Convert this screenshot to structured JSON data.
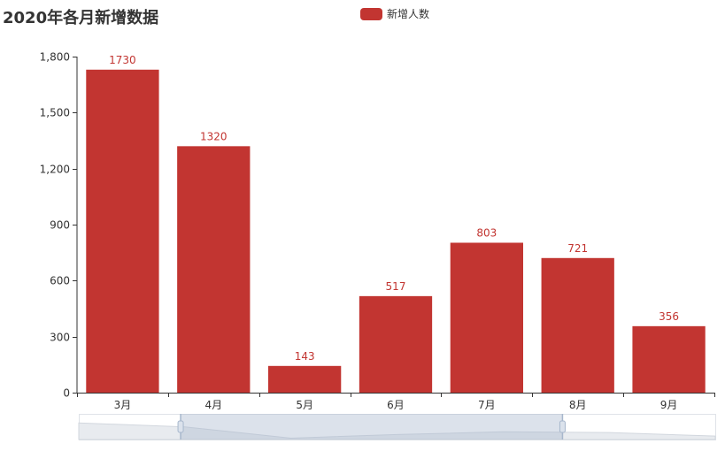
{
  "chart_data": {
    "type": "bar",
    "title": "2020年各月新增数据",
    "categories": [
      "3月",
      "4月",
      "5月",
      "6月",
      "7月",
      "8月",
      "9月"
    ],
    "series": [
      {
        "name": "新增人数",
        "values": [
          1730,
          1320,
          143,
          517,
          803,
          721,
          356
        ]
      }
    ],
    "ylim": [
      0,
      1800
    ],
    "yticks": [
      0,
      300,
      600,
      900,
      1200,
      1500,
      1800
    ],
    "ytick_labels": [
      "0",
      "300",
      "600",
      "900",
      "1,200",
      "1,500",
      "1,800"
    ],
    "grid": false,
    "legend_position": "top-center",
    "bar_color": "#c23531",
    "data_zoom": {
      "start_fraction": 0.16,
      "end_fraction": 0.76
    }
  }
}
